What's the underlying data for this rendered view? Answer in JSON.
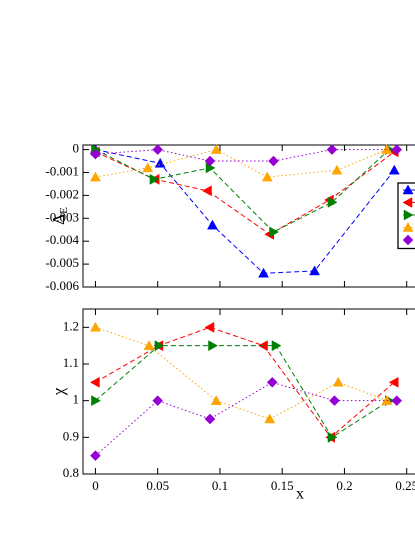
{
  "chart_data": [
    {
      "type": "line",
      "ylabel": "Δ",
      "ylabel_sub": "E",
      "xlim": [
        -0.01,
        0.32
      ],
      "ylim": [
        -0.006,
        0.0002
      ],
      "yticks": [
        0,
        -0.001,
        -0.002,
        -0.003,
        -0.004,
        -0.005,
        -0.006
      ],
      "legend": "right",
      "series": [
        {
          "color": "#0000ff",
          "marker": "up",
          "dash": "dashed",
          "x": [
            0,
            0.052,
            0.094,
            0.135,
            0.176,
            0.24
          ],
          "values": [
            0,
            -0.0006,
            -0.0033,
            -0.0054,
            -0.0053,
            -0.0009
          ]
        },
        {
          "color": "#ff0000",
          "marker": "left",
          "dash": "dashed",
          "x": [
            0,
            0.048,
            0.09,
            0.14,
            0.188,
            0.24
          ],
          "values": [
            -0.0001,
            -0.0013,
            -0.0018,
            -0.0037,
            -0.0022,
            -0.0001
          ]
        },
        {
          "color": "#008000",
          "marker": "right",
          "dash": "dashed",
          "x": [
            0,
            0.047,
            0.092,
            0.143,
            0.19,
            0.236
          ],
          "values": [
            0,
            -0.0013,
            -0.0008,
            -0.0036,
            -0.0023,
            0
          ]
        },
        {
          "color": "#ffa500",
          "marker": "up",
          "dash": "dotted",
          "x": [
            0,
            0.042,
            0.097,
            0.138,
            0.194,
            0.234
          ],
          "values": [
            -0.0012,
            -0.0008,
            0,
            -0.0012,
            -0.0009,
            0
          ]
        },
        {
          "color": "#9400d3",
          "marker": "diamond",
          "dash": "dotted",
          "x": [
            0,
            0.05,
            0.092,
            0.143,
            0.19,
            0.242
          ],
          "values": [
            -0.0002,
            0,
            -0.0005,
            -0.0005,
            0,
            0
          ]
        }
      ]
    },
    {
      "type": "line",
      "ylabel": "χ",
      "xlabel": "x",
      "xlim": [
        -0.01,
        0.32
      ],
      "ylim": [
        0.8,
        1.25
      ],
      "xticks": [
        0,
        0.05,
        0.1,
        0.15,
        0.2,
        0.25
      ],
      "yticks": [
        0.8,
        0.9,
        1,
        1.1,
        1.2
      ],
      "series": [
        {
          "color": "#ff0000",
          "marker": "left",
          "dash": "dashed",
          "x": [
            0,
            0.051,
            0.092,
            0.135,
            0.189,
            0.24
          ],
          "values": [
            1.05,
            1.15,
            1.2,
            1.15,
            0.9,
            1.05
          ]
        },
        {
          "color": "#008000",
          "marker": "right",
          "dash": "dashed",
          "x": [
            0,
            0.051,
            0.094,
            0.145,
            0.19,
            0.236
          ],
          "values": [
            1,
            1.15,
            1.15,
            1.15,
            0.9,
            1
          ]
        },
        {
          "color": "#ffa500",
          "marker": "up",
          "dash": "dotted",
          "x": [
            0,
            0.043,
            0.097,
            0.14,
            0.195,
            0.234
          ],
          "values": [
            1.2,
            1.15,
            1,
            0.95,
            1.05,
            1
          ]
        },
        {
          "color": "#9400d3",
          "marker": "diamond",
          "dash": "dotted",
          "x": [
            0,
            0.05,
            0.092,
            0.142,
            0.192,
            0.242
          ],
          "values": [
            0.85,
            1,
            0.95,
            1.05,
            1,
            1
          ]
        }
      ]
    }
  ]
}
